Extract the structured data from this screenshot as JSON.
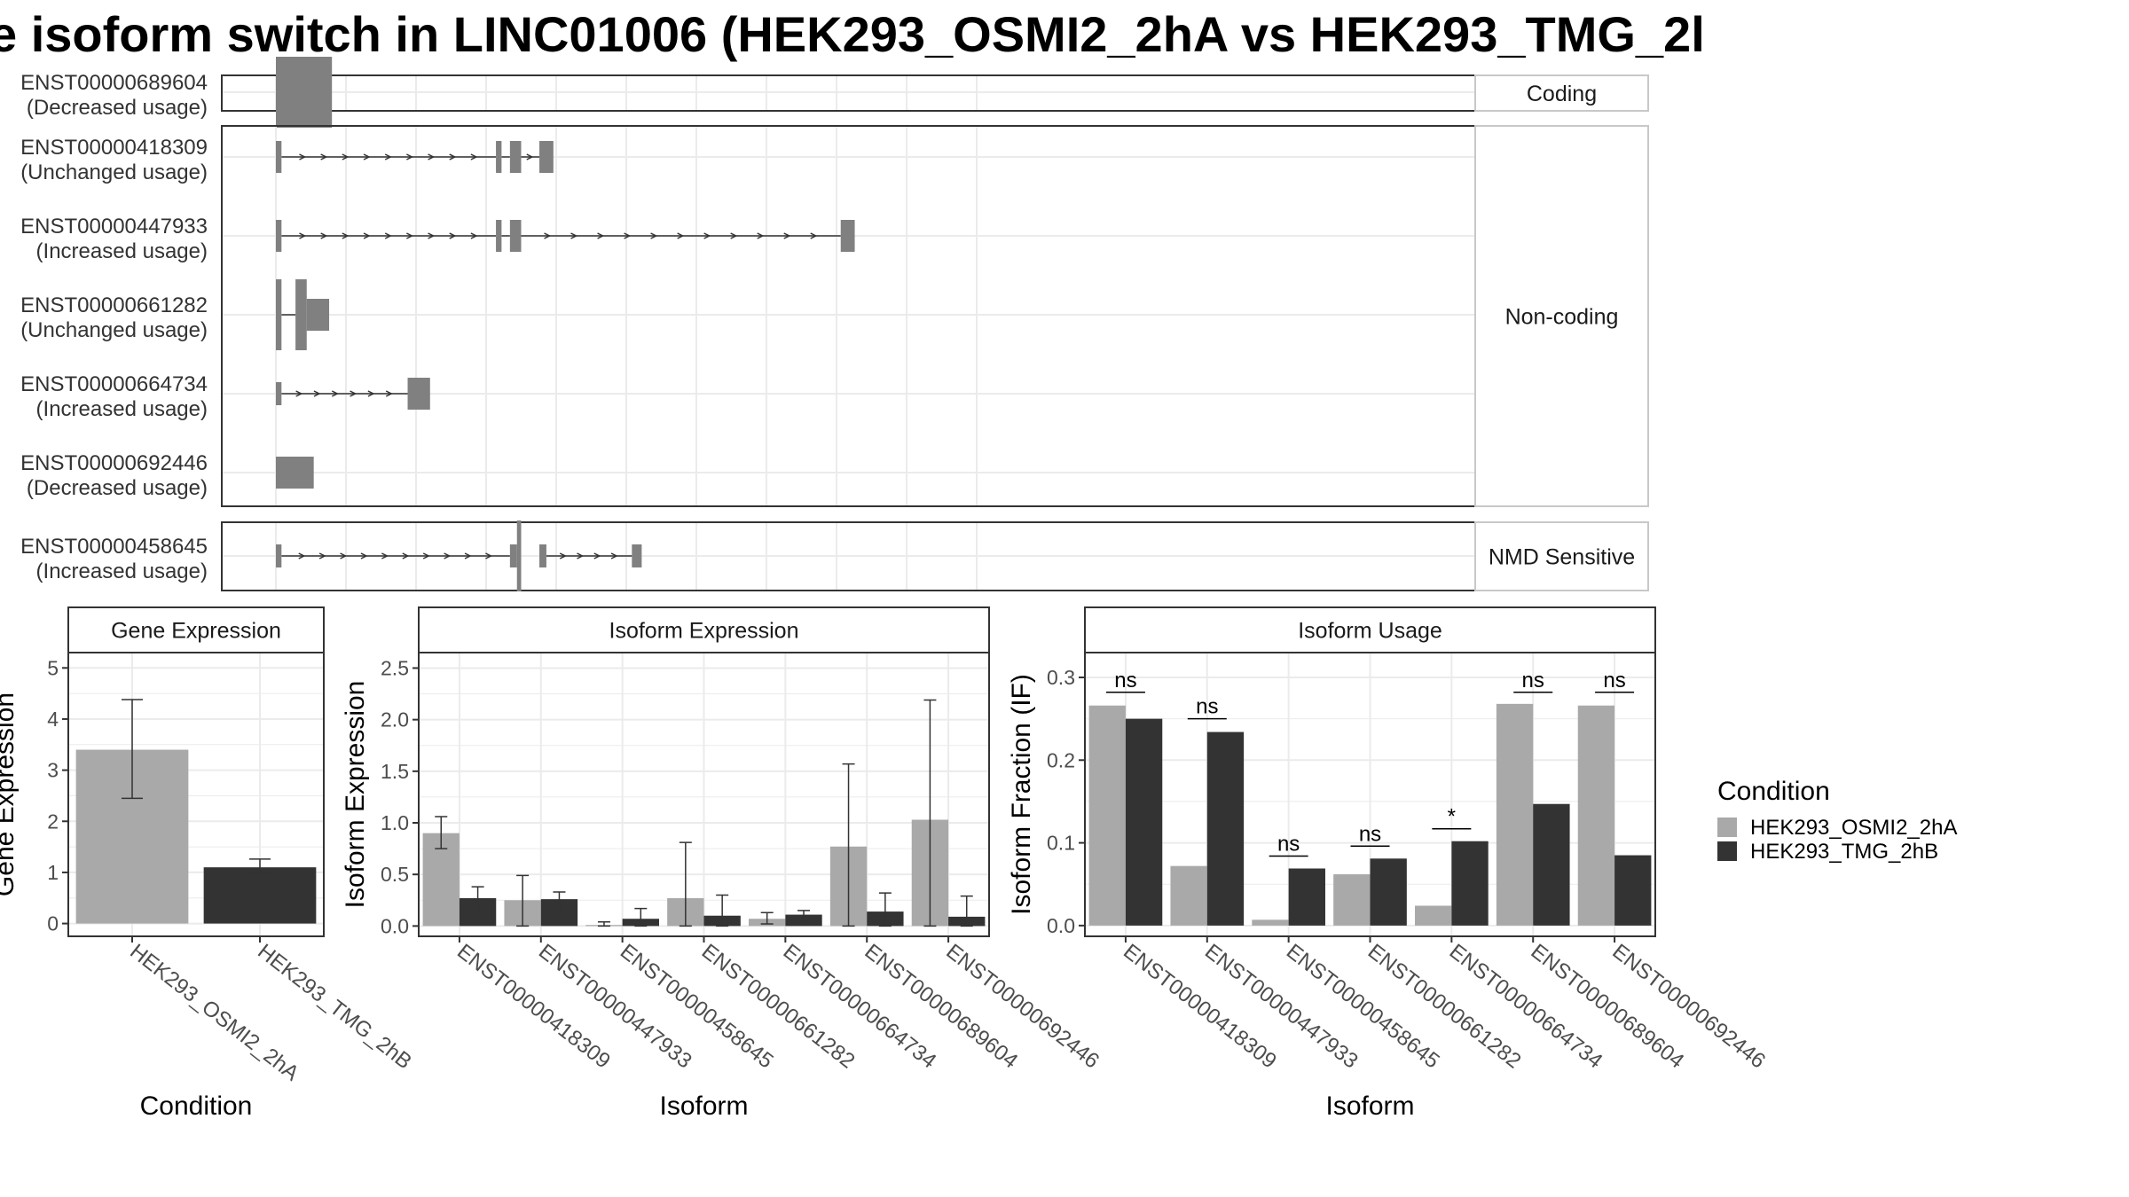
{
  "title": "e isoform switch in LINC01006 (HEK293_OSMI2_2hA vs HEK293_TMG_2l",
  "colors": {
    "condition_a": "#a9a9a9",
    "condition_b": "#333333",
    "exon": "#808080",
    "grid": "#ebebeb",
    "panel_border": "#333333",
    "strip_border": "#c8c8c8"
  },
  "structure": {
    "groups": [
      {
        "label": "Coding",
        "transcripts": [
          {
            "id": "ENST00000689604",
            "usage": "(Decreased usage)",
            "exons": [
              [
                0.2,
                4.2,
                "big"
              ]
            ],
            "arrows": []
          }
        ]
      },
      {
        "label": "Non-coding",
        "transcripts": [
          {
            "id": "ENST00000418309",
            "usage": "(Unchanged usage)",
            "exons": [
              [
                0.2,
                0.6,
                "med"
              ],
              [
                15.9,
                16.3,
                "med"
              ],
              [
                16.9,
                17.7,
                "med"
              ],
              [
                19.0,
                20.0,
                "med"
              ]
            ],
            "arrows": [
              [
                0.6,
                15.9,
                9
              ],
              [
                16.3,
                16.9,
                0
              ],
              [
                17.7,
                19.0,
                1
              ]
            ]
          },
          {
            "id": "ENST00000447933",
            "usage": "(Increased usage)",
            "exons": [
              [
                0.2,
                0.6,
                "med"
              ],
              [
                15.9,
                16.3,
                "med"
              ],
              [
                16.9,
                17.7,
                "med"
              ],
              [
                40.5,
                41.5,
                "med"
              ]
            ],
            "arrows": [
              [
                0.6,
                15.9,
                9
              ],
              [
                16.3,
                16.9,
                0
              ],
              [
                17.7,
                40.5,
                11
              ]
            ]
          },
          {
            "id": "ENST00000661282",
            "usage": "(Unchanged usage)",
            "exons": [
              [
                0.2,
                0.6,
                "big"
              ],
              [
                1.6,
                2.4,
                "big"
              ],
              [
                2.4,
                4.0,
                "med"
              ]
            ],
            "arrows": [
              [
                0.6,
                1.6,
                0
              ]
            ]
          },
          {
            "id": "ENST00000664734",
            "usage": "(Increased usage)",
            "exons": [
              [
                0.2,
                0.6,
                "small"
              ],
              [
                9.6,
                11.2,
                "med"
              ]
            ],
            "arrows": [
              [
                0.6,
                9.6,
                6
              ]
            ]
          },
          {
            "id": "ENST00000692446",
            "usage": "(Decreased usage)",
            "exons": [
              [
                0.2,
                2.9,
                "med"
              ]
            ],
            "arrows": []
          }
        ]
      },
      {
        "label": "NMD Sensitive",
        "transcripts": [
          {
            "id": "ENST00000458645",
            "usage": "(Increased usage)",
            "exons": [
              [
                0.2,
                0.6,
                "small"
              ],
              [
                16.9,
                17.4,
                "small"
              ],
              [
                17.4,
                17.7,
                "big"
              ],
              [
                19.0,
                19.5,
                "small"
              ],
              [
                25.6,
                26.3,
                "small"
              ]
            ],
            "arrows": [
              [
                0.6,
                16.9,
                10
              ],
              [
                19.5,
                25.6,
                4
              ]
            ]
          }
        ]
      }
    ]
  },
  "chart_data": [
    {
      "type": "bar",
      "title": "Gene Expression",
      "xlabel": "Condition",
      "ylabel": "Gene Expression",
      "ylim": [
        -0.25,
        5.3
      ],
      "yticks": [
        0,
        1,
        2,
        3,
        4,
        5
      ],
      "ytick_labels": [
        "0",
        "1",
        "2",
        "3",
        "4",
        "5"
      ],
      "categories": [
        "HEK293_OSMI2_2hA",
        "HEK293_TMG_2hB"
      ],
      "values": [
        3.4,
        1.1
      ],
      "errors": [
        [
          2.45,
          4.38
        ],
        [
          0.98,
          1.26
        ]
      ]
    },
    {
      "type": "bar",
      "title": "Isoform Expression",
      "xlabel": "Isoform",
      "ylabel": "Isoform Expression",
      "ylim": [
        -0.1,
        2.65
      ],
      "yticks": [
        0,
        0.5,
        1,
        1.5,
        2,
        2.5
      ],
      "ytick_labels": [
        "0.0",
        "0.5",
        "1.0",
        "1.5",
        "2.0",
        "2.5"
      ],
      "categories": [
        "ENST00000418309",
        "ENST00000447933",
        "ENST00000458645",
        "ENST00000661282",
        "ENST00000664734",
        "ENST00000689604",
        "ENST00000692446"
      ],
      "series": [
        {
          "name": "HEK293_OSMI2_2hA",
          "values": [
            0.9,
            0.25,
            0.01,
            0.27,
            0.07,
            0.77,
            1.03
          ],
          "errors": [
            [
              0.75,
              1.06
            ],
            [
              0.0,
              0.49
            ],
            [
              0.0,
              0.04
            ],
            [
              0.0,
              0.81
            ],
            [
              0.02,
              0.13
            ],
            [
              0.0,
              1.57
            ],
            [
              0.0,
              2.19
            ]
          ]
        },
        {
          "name": "HEK293_TMG_2hB",
          "values": [
            0.27,
            0.26,
            0.07,
            0.1,
            0.11,
            0.14,
            0.09
          ],
          "errors": [
            [
              0.15,
              0.38
            ],
            [
              0.18,
              0.33
            ],
            [
              0.0,
              0.17
            ],
            [
              0.0,
              0.3
            ],
            [
              0.06,
              0.15
            ],
            [
              0.0,
              0.32
            ],
            [
              0.0,
              0.29
            ]
          ]
        }
      ]
    },
    {
      "type": "bar",
      "title": "Isoform Usage",
      "xlabel": "Isoform",
      "ylabel": "Isoform Fraction (IF)",
      "ylim": [
        -0.013,
        0.33
      ],
      "yticks": [
        0,
        0.1,
        0.2,
        0.3
      ],
      "ytick_labels": [
        "0.0",
        "0.1",
        "0.2",
        "0.3"
      ],
      "categories": [
        "ENST00000418309",
        "ENST00000447933",
        "ENST00000458645",
        "ENST00000661282",
        "ENST00000664734",
        "ENST00000689604",
        "ENST00000692446"
      ],
      "series": [
        {
          "name": "HEK293_OSMI2_2hA",
          "values": [
            0.266,
            0.072,
            0.007,
            0.062,
            0.024,
            0.268,
            0.266
          ]
        },
        {
          "name": "HEK293_TMG_2hB",
          "values": [
            0.25,
            0.234,
            0.069,
            0.081,
            0.102,
            0.147,
            0.085
          ]
        }
      ],
      "significance": [
        {
          "label": "ns",
          "y": 0.282
        },
        {
          "label": "ns",
          "y": 0.25
        },
        {
          "label": "ns",
          "y": 0.084
        },
        {
          "label": "ns",
          "y": 0.096
        },
        {
          "label": "*",
          "y": 0.117
        },
        {
          "label": "ns",
          "y": 0.282
        },
        {
          "label": "ns",
          "y": 0.282
        }
      ]
    }
  ],
  "legend": {
    "title": "Condition",
    "items": [
      "HEK293_OSMI2_2hA",
      "HEK293_TMG_2hB"
    ]
  }
}
